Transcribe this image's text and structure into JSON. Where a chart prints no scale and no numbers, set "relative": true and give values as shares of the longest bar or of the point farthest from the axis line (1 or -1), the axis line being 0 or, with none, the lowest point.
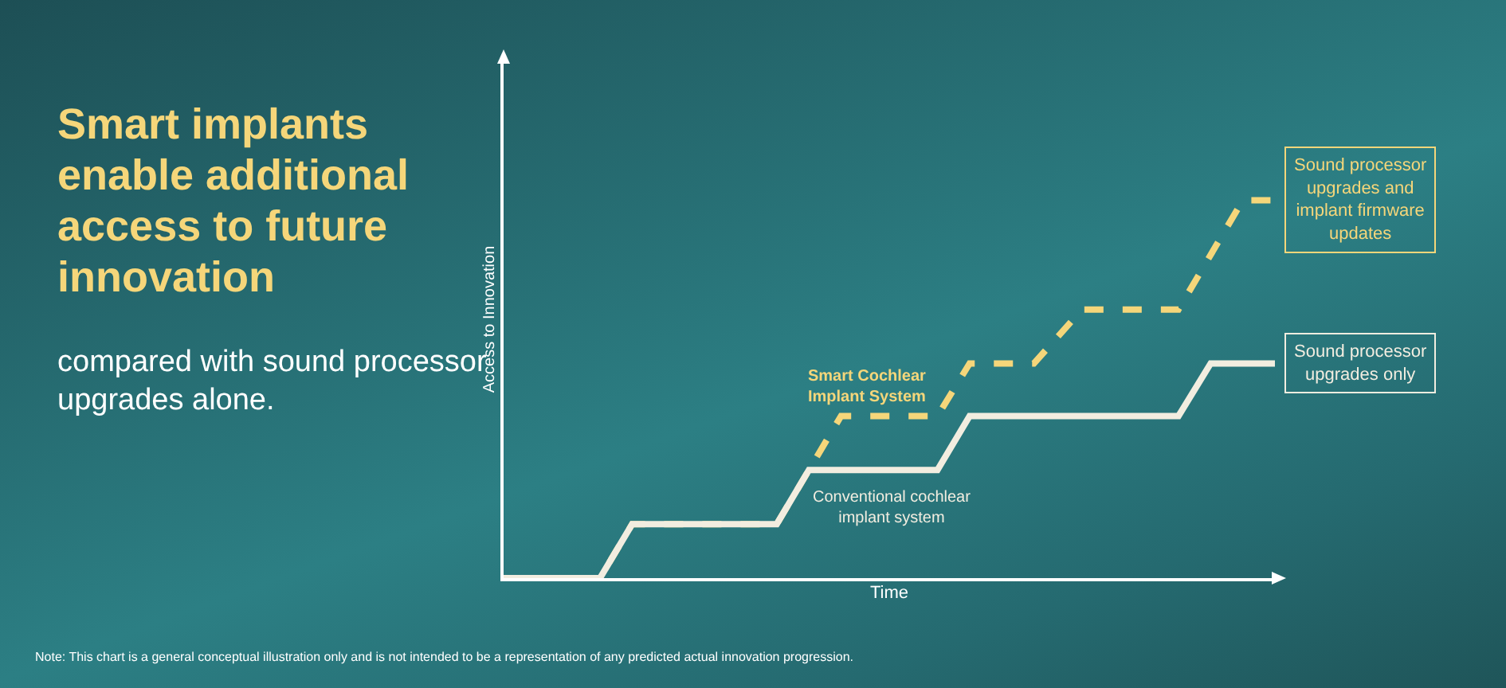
{
  "chart_data": {
    "type": "line",
    "title": "Smart implants enable additional access to future innovation",
    "subtitle": "compared with sound processor upgrades alone.",
    "xlabel": "Time",
    "ylabel": "Access to Innovation",
    "relative": true,
    "legend": false,
    "grid": false,
    "marker": "none",
    "categories": [
      null,
      null,
      null,
      null,
      null,
      null,
      null,
      null,
      null,
      null,
      null,
      null,
      null,
      null,
      null,
      null,
      null,
      null,
      null,
      null,
      null,
      null,
      null,
      null,
      null,
      null,
      null,
      null,
      null,
      null,
      null,
      null,
      null,
      null,
      null,
      null,
      null,
      null,
      null,
      null,
      null,
      null,
      null,
      null,
      null,
      null,
      null,
      null,
      null
    ],
    "series": [
      {
        "name": "Smart Cochlear Implant System",
        "color": "#f5d67a",
        "line_style": "dashed",
        "values": [
          0,
          null,
          null,
          null,
          null,
          null,
          0,
          null,
          0.143,
          null,
          null,
          null,
          null,
          null,
          null,
          null,
          null,
          0.143,
          null,
          null,
          null,
          0.429,
          null,
          null,
          null,
          null,
          null,
          0.429,
          null,
          0.568,
          null,
          null,
          null,
          0.568,
          null,
          null,
          0.711,
          null,
          null,
          null,
          null,
          null,
          0.711,
          null,
          null,
          null,
          1,
          null,
          1
        ]
      },
      {
        "name": "Conventional cochlear implant system",
        "color": "#f2ede0",
        "line_style": "solid",
        "values": [
          0,
          null,
          null,
          null,
          null,
          null,
          0,
          null,
          0.143,
          null,
          null,
          null,
          null,
          null,
          null,
          null,
          null,
          0.143,
          null,
          0.286,
          null,
          null,
          null,
          null,
          null,
          null,
          null,
          0.286,
          null,
          0.429,
          null,
          null,
          null,
          null,
          null,
          null,
          null,
          null,
          null,
          null,
          null,
          null,
          0.429,
          null,
          0.568,
          null,
          null,
          null,
          0.568
        ]
      }
    ],
    "annotations": [
      "Sound processor upgrades and implant firmware updates",
      "Sound processor upgrades only",
      "Note: This chart is a general conceptual illustration only and is not intended to be a representation of any predicted actual innovation progression."
    ]
  }
}
